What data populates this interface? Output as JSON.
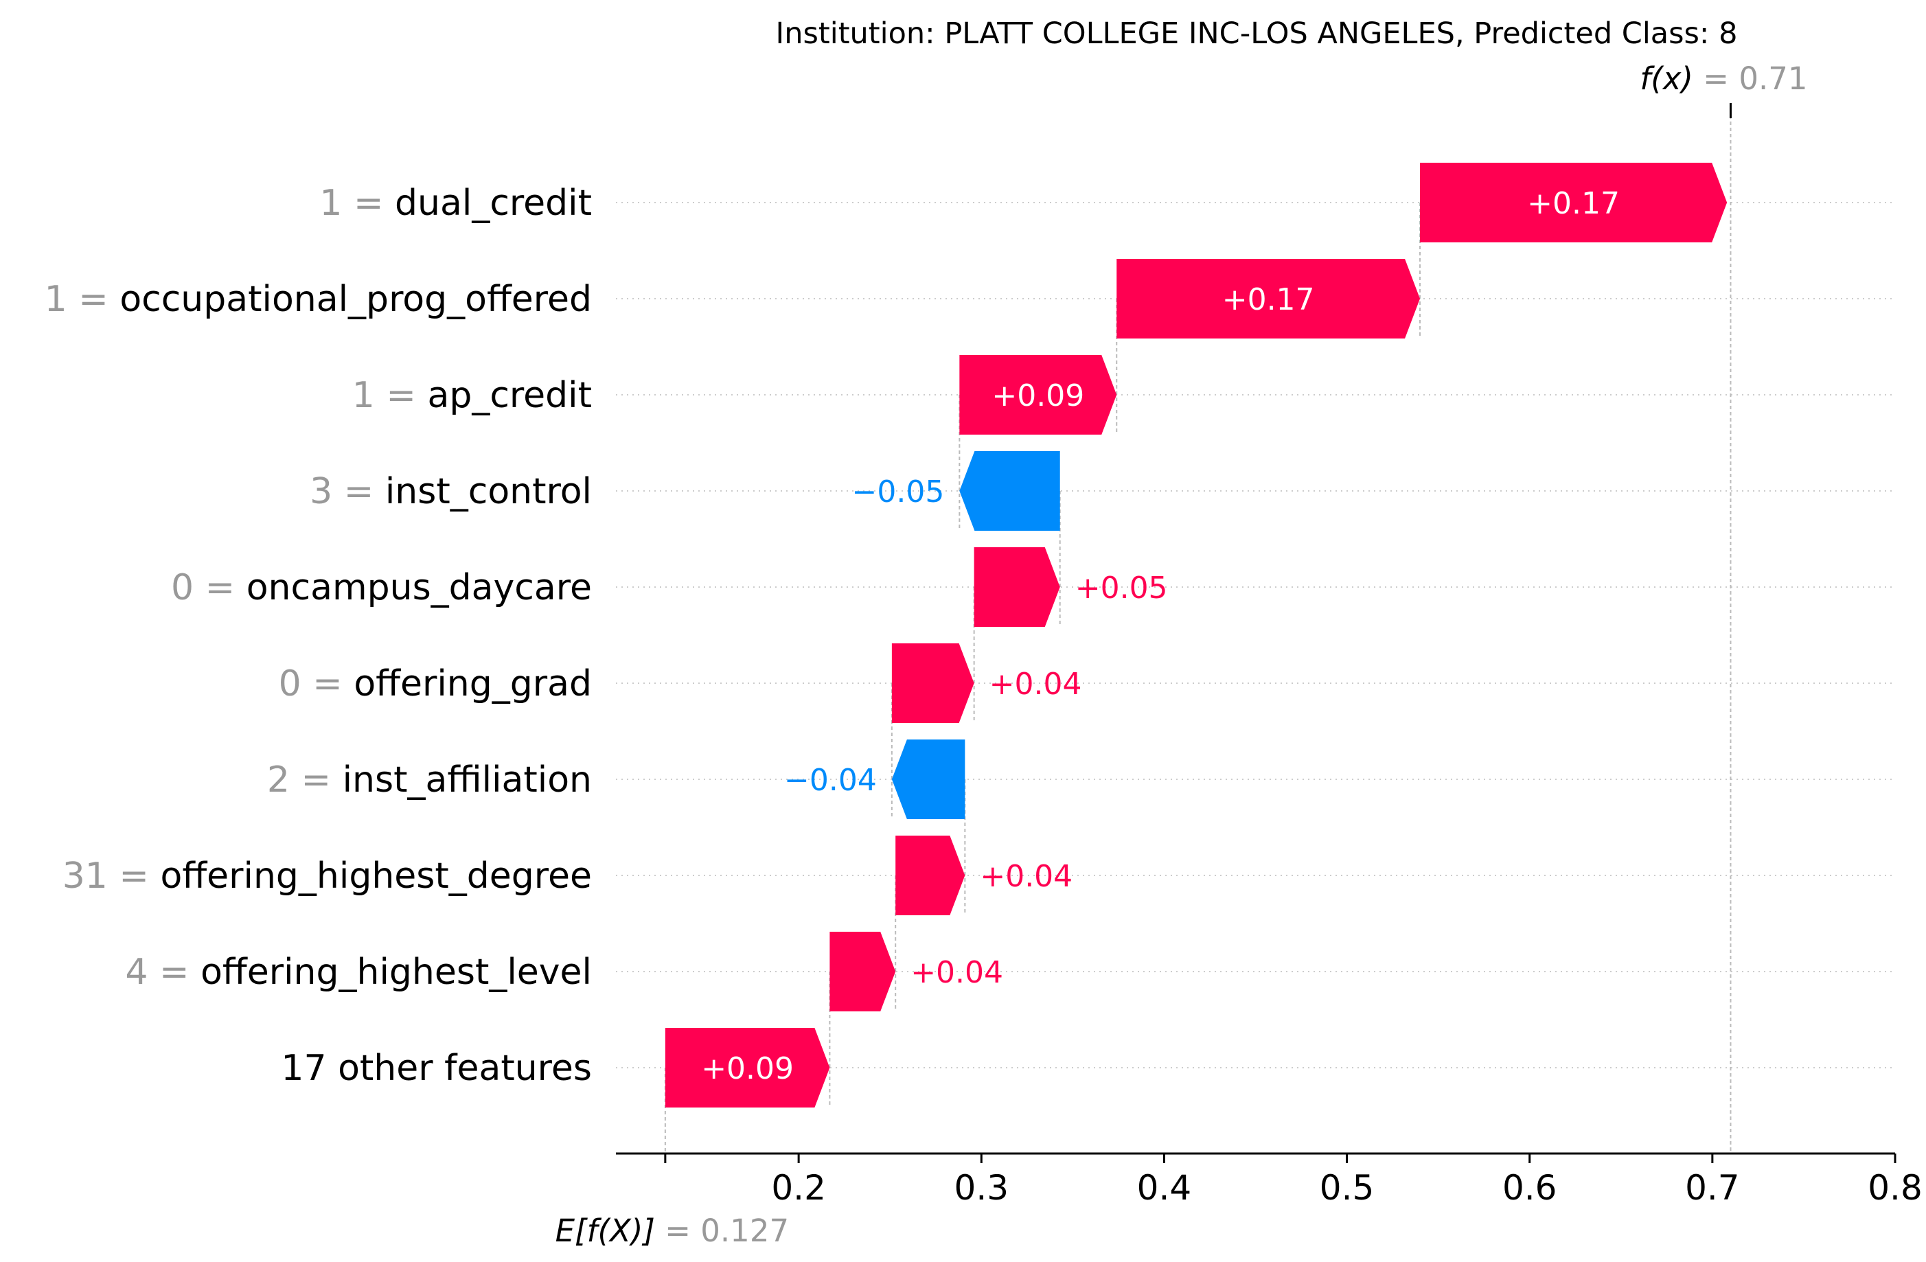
{
  "chart_data": {
    "type": "waterfall",
    "title": "Institution: PLATT COLLEGE INC-LOS ANGELES, Predicted Class: 8",
    "base_value": 0.127,
    "base_label_expr": "E[f(X)]",
    "base_label_value": "0.127",
    "output_value": 0.71,
    "output_label_expr": "f(x)",
    "output_label_value": "0.71",
    "xlim": [
      0.1,
      0.8
    ],
    "xticks": [
      0.2,
      0.3,
      0.4,
      0.5,
      0.6,
      0.7,
      0.8
    ],
    "xtick_labels": [
      "0.2",
      "0.3",
      "0.4",
      "0.5",
      "0.6",
      "0.7",
      "0.8"
    ],
    "grid": "horizontal dotted",
    "colors": {
      "positive": "#ff0051",
      "negative": "#008bfb",
      "muted": "#999999",
      "text": "#000000"
    },
    "features": [
      {
        "value": "1",
        "name": "dual_credit",
        "contribution": 0.168,
        "label": "+0.17"
      },
      {
        "value": "1",
        "name": "occupational_prog_offered",
        "contribution": 0.166,
        "label": "+0.17"
      },
      {
        "value": "1",
        "name": "ap_credit",
        "contribution": 0.086,
        "label": "+0.09"
      },
      {
        "value": "3",
        "name": "inst_control",
        "contribution": -0.055,
        "label": "−0.05"
      },
      {
        "value": "0",
        "name": "oncampus_daycare",
        "contribution": 0.047,
        "label": "+0.05"
      },
      {
        "value": "0",
        "name": "offering_grad",
        "contribution": 0.045,
        "label": "+0.04"
      },
      {
        "value": "2",
        "name": "inst_affiliation",
        "contribution": -0.04,
        "label": "−0.04"
      },
      {
        "value": "31",
        "name": "offering_highest_degree",
        "contribution": 0.038,
        "label": "+0.04"
      },
      {
        "value": "4",
        "name": "offering_highest_level",
        "contribution": 0.036,
        "label": "+0.04"
      },
      {
        "value": "",
        "name": "17 other features",
        "contribution": 0.09,
        "label": "+0.09"
      }
    ]
  }
}
